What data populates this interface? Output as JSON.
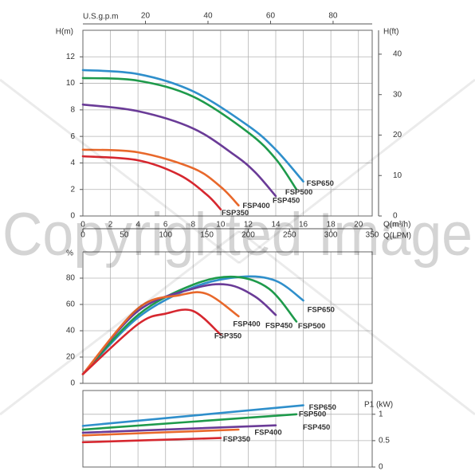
{
  "chart_data": [
    {
      "type": "line",
      "y_label": "H(m)",
      "x_label": "Q(m³/h)",
      "xlim": [
        0,
        21
      ],
      "xticks": [
        0,
        2,
        4,
        6,
        8,
        10,
        12,
        14,
        16,
        18,
        20
      ],
      "ylim": [
        0,
        14
      ],
      "yticks": [
        0,
        2,
        4,
        6,
        8,
        10,
        12
      ],
      "grid": true,
      "y2_label": "H(ft)",
      "y2lim": [
        0,
        45.9
      ],
      "y2ticks": [
        0,
        10,
        20,
        30,
        40
      ],
      "x2_label": "U.S.g.p.m",
      "x2lim": [
        0,
        92.5
      ],
      "x2ticks": [
        20,
        40,
        60,
        80
      ],
      "x3_label": "Q(LPM)",
      "x3lim": [
        0,
        350
      ],
      "x3ticks": [
        0,
        50,
        100,
        150,
        200,
        250,
        300,
        350
      ],
      "series": [
        {
          "name": "FSP650",
          "color": "#2f8fcb",
          "x": [
            0,
            4,
            8,
            12,
            14,
            16
          ],
          "values": [
            11,
            10.7,
            9.4,
            6.8,
            5.0,
            2.6
          ]
        },
        {
          "name": "FSP500",
          "color": "#1e9a4b",
          "x": [
            0,
            4,
            8,
            12,
            14,
            15.5
          ],
          "values": [
            10.4,
            10.2,
            9.0,
            6.3,
            4.3,
            2.0
          ]
        },
        {
          "name": "FSP450",
          "color": "#6a3b97",
          "x": [
            0,
            4,
            8,
            11,
            12.5,
            14
          ],
          "values": [
            8.4,
            7.9,
            6.6,
            4.6,
            3.3,
            1.5
          ]
        },
        {
          "name": "FSP400",
          "color": "#e8682b",
          "x": [
            0,
            4,
            8,
            10,
            11.3
          ],
          "values": [
            5.0,
            4.8,
            3.6,
            2.2,
            0.8
          ]
        },
        {
          "name": "FSP350",
          "color": "#d6272f",
          "x": [
            0,
            4,
            7,
            9,
            10
          ],
          "values": [
            4.5,
            4.2,
            3.1,
            1.6,
            0.5
          ]
        }
      ]
    },
    {
      "type": "line",
      "y_label": "%",
      "xlim": [
        0,
        21
      ],
      "ylim": [
        0,
        100
      ],
      "yticks": [
        0,
        20,
        40,
        60,
        80
      ],
      "grid": true,
      "series": [
        {
          "name": "FSP650",
          "color": "#2f8fcb",
          "x": [
            0,
            4,
            8,
            11.5,
            14,
            16
          ],
          "values": [
            7,
            50,
            73,
            81,
            78,
            63
          ]
        },
        {
          "name": "FSP500",
          "color": "#1e9a4b",
          "x": [
            0,
            4,
            8,
            11,
            13.5,
            15.5
          ],
          "values": [
            7,
            52,
            75,
            81,
            72,
            47
          ]
        },
        {
          "name": "FSP450",
          "color": "#6a3b97",
          "x": [
            0,
            4,
            8,
            10.5,
            12.5,
            14
          ],
          "values": [
            7,
            55,
            72,
            75,
            66,
            52
          ]
        },
        {
          "name": "FSP400",
          "color": "#e8682b",
          "x": [
            0,
            4,
            7,
            9,
            11.3
          ],
          "values": [
            7,
            57,
            67,
            68,
            51
          ]
        },
        {
          "name": "FSP350",
          "color": "#d6272f",
          "x": [
            0,
            4,
            6,
            8,
            10
          ],
          "values": [
            7,
            45,
            53,
            55,
            37
          ]
        }
      ]
    },
    {
      "type": "line",
      "y_label": "P1 (kW)",
      "y_axis_position": "right",
      "xlim": [
        0,
        21
      ],
      "ylim": [
        0,
        1.45
      ],
      "yticks": [
        0,
        0.5,
        1
      ],
      "grid": true,
      "series": [
        {
          "name": "FSP650",
          "color": "#2f8fcb",
          "x": [
            0,
            16
          ],
          "values": [
            0.78,
            1.17
          ]
        },
        {
          "name": "FSP500",
          "color": "#1e9a4b",
          "x": [
            0,
            15.5
          ],
          "values": [
            0.71,
            1.0
          ]
        },
        {
          "name": "FSP450",
          "color": "#6a3b97",
          "x": [
            0,
            14
          ],
          "values": [
            0.65,
            0.79
          ]
        },
        {
          "name": "FSP400",
          "color": "#e8682b",
          "x": [
            0,
            11.3
          ],
          "values": [
            0.6,
            0.71
          ]
        },
        {
          "name": "FSP350",
          "color": "#d6272f",
          "x": [
            0,
            10
          ],
          "values": [
            0.47,
            0.55
          ]
        }
      ]
    }
  ],
  "watermark": "Copyrighted Image"
}
